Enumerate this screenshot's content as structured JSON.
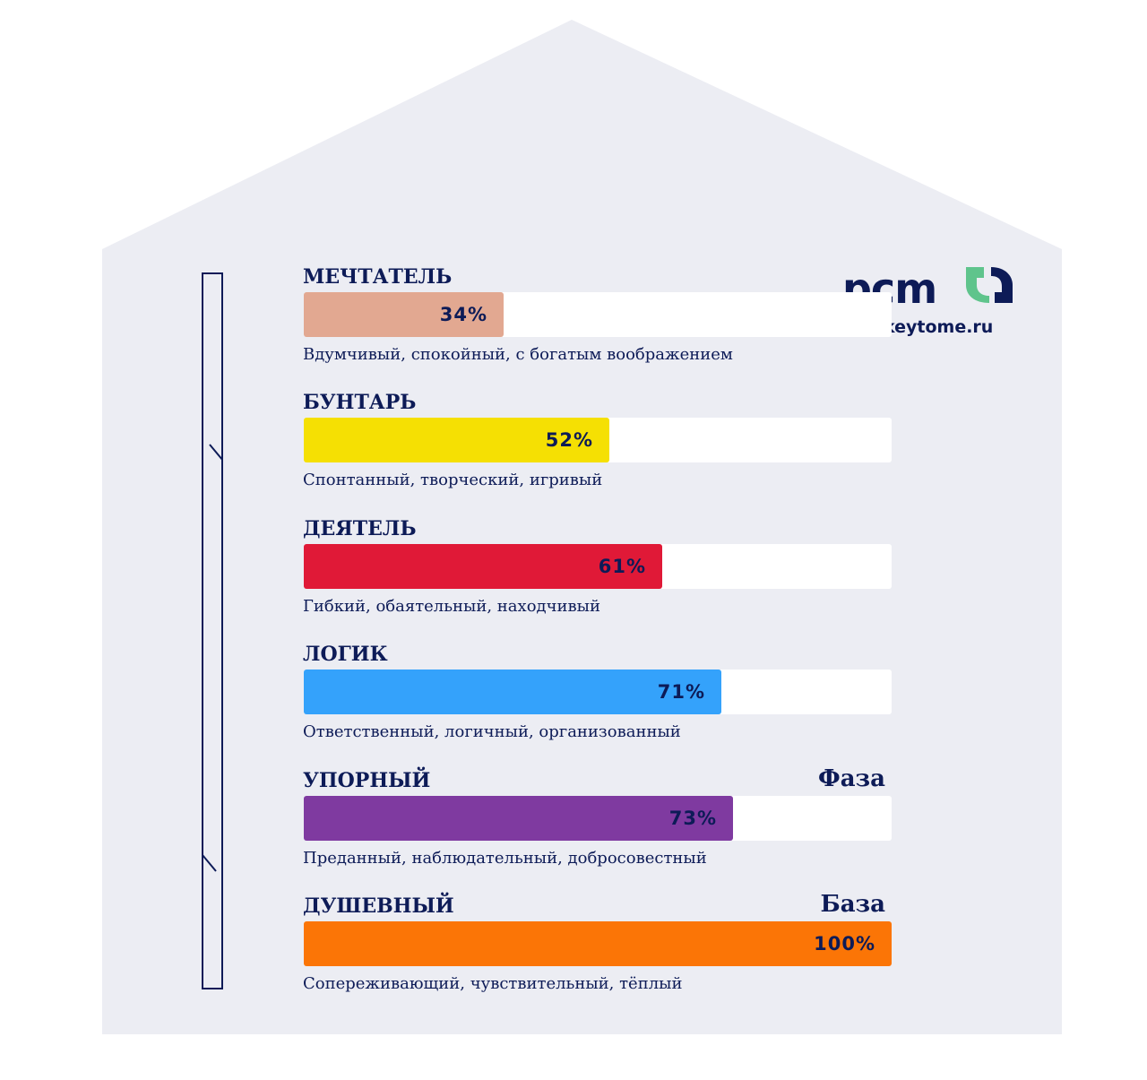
{
  "logo": {
    "wordmark": "pcm",
    "site": "keytome.ru"
  },
  "colors": {
    "background": "#ecedf3",
    "text": "#0d1b57",
    "logo_accent": "#5fc48c",
    "track": "#ffffff"
  },
  "chart_data": {
    "type": "bar",
    "orientation": "horizontal",
    "xlim": [
      0,
      100
    ],
    "unit": "%",
    "bars": [
      {
        "label": "МЕЧТАТЕЛЬ",
        "value": 34,
        "value_label": "34%",
        "tag": "",
        "description": "Вдумчивый, спокойный, с богатым воображением",
        "color": "#e2a891"
      },
      {
        "label": "БУНТАРЬ",
        "value": 52,
        "value_label": "52%",
        "tag": "",
        "description": "Спонтанный, творческий, игривый",
        "color": "#f5e003"
      },
      {
        "label": "ДЕЯТЕЛЬ",
        "value": 61,
        "value_label": "61%",
        "tag": "",
        "description": "Гибкий, обаятельный, находчивый",
        "color": "#e01937"
      },
      {
        "label": "ЛОГИК",
        "value": 71,
        "value_label": "71%",
        "tag": "",
        "description": "Ответственный, логичный, организованный",
        "color": "#34a2fb"
      },
      {
        "label": "УПОРНЫЙ",
        "value": 73,
        "value_label": "73%",
        "tag": "Фаза",
        "description": "Преданный, наблюдательный, добросовестный",
        "color": "#7f3aa0"
      },
      {
        "label": "ДУШЕВНЫЙ",
        "value": 100,
        "value_label": "100%",
        "tag": "База",
        "description": "Сопереживающий, чувствительный, тёплый",
        "color": "#fb7506"
      }
    ]
  }
}
